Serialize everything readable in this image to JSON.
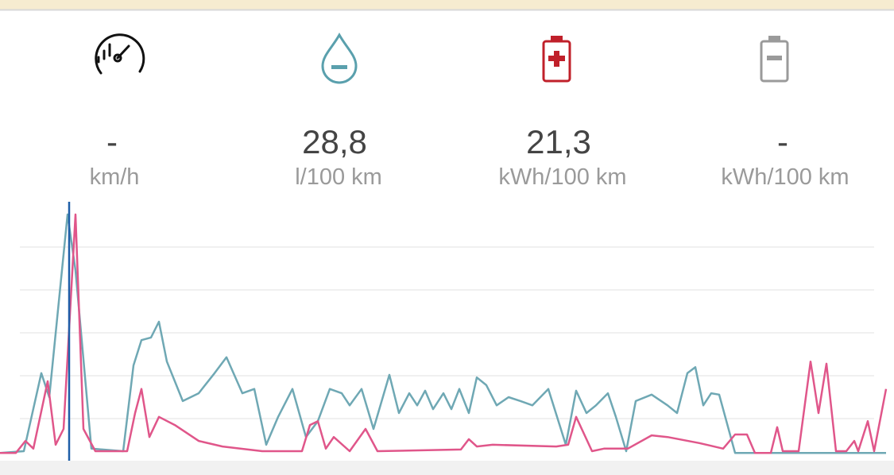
{
  "stats": [
    {
      "value": "-",
      "unit": "km/h"
    },
    {
      "value": "28,8",
      "unit": "l/100 km"
    },
    {
      "value": "21,3",
      "unit": "kWh/100 km"
    },
    {
      "value": "-",
      "unit": "kWh/100 km"
    }
  ],
  "chart_data": {
    "type": "line",
    "xlim": [
      0,
      1115
    ],
    "ylim": [
      0,
      6
    ],
    "gridlines": [
      1,
      2,
      3,
      4,
      5
    ],
    "series": [
      {
        "color": "#6fa8b4",
        "x": [
          0,
          30,
          52,
          62,
          85,
          95,
          115,
          155,
          168,
          178,
          190,
          200,
          210,
          230,
          250,
          270,
          285,
          305,
          320,
          335,
          350,
          368,
          385,
          400,
          415,
          430,
          440,
          455,
          470,
          490,
          502,
          515,
          525,
          535,
          545,
          558,
          568,
          578,
          590,
          600,
          612,
          625,
          640,
          655,
          670,
          690,
          712,
          725,
          738,
          750,
          765,
          775,
          788,
          800,
          820,
          840,
          852,
          865,
          875,
          885,
          895,
          905,
          925,
          1115
        ],
        "values": [
          0.2,
          0.24,
          2.06,
          1.5,
          5.76,
          4.46,
          0.3,
          0.24,
          2.24,
          2.83,
          2.89,
          3.26,
          2.33,
          1.41,
          1.59,
          2.06,
          2.43,
          1.59,
          1.69,
          0.39,
          1.04,
          1.69,
          0.57,
          0.94,
          1.69,
          1.59,
          1.31,
          1.69,
          0.76,
          2.02,
          1.13,
          1.59,
          1.31,
          1.65,
          1.22,
          1.59,
          1.22,
          1.69,
          1.13,
          1.96,
          1.78,
          1.31,
          1.5,
          1.41,
          1.31,
          1.69,
          0.39,
          1.65,
          1.13,
          1.31,
          1.59,
          1.04,
          0.24,
          1.41,
          1.56,
          1.31,
          1.13,
          2.06,
          2.2,
          1.31,
          1.59,
          1.56,
          0.2,
          0.2
        ]
      },
      {
        "color": "#e0568a",
        "x": [
          0,
          20,
          32,
          42,
          60,
          70,
          80,
          95,
          105,
          120,
          160,
          170,
          178,
          188,
          200,
          220,
          250,
          280,
          330,
          380,
          390,
          400,
          410,
          420,
          440,
          460,
          475,
          580,
          590,
          600,
          620,
          700,
          715,
          725,
          745,
          760,
          790,
          820,
          840,
          880,
          910,
          925,
          940,
          950,
          970,
          978,
          985,
          1005,
          1020,
          1030,
          1040,
          1052,
          1065,
          1075,
          1080,
          1092,
          1100,
          1115
        ],
        "values": [
          0.2,
          0.2,
          0.48,
          0.3,
          1.87,
          0.39,
          0.76,
          5.76,
          0.76,
          0.24,
          0.24,
          1.13,
          1.69,
          0.57,
          1.04,
          0.85,
          0.48,
          0.35,
          0.24,
          0.24,
          0.85,
          0.94,
          0.3,
          0.57,
          0.24,
          0.76,
          0.24,
          0.28,
          0.52,
          0.35,
          0.39,
          0.35,
          0.39,
          1.04,
          0.24,
          0.3,
          0.3,
          0.61,
          0.57,
          0.43,
          0.3,
          0.63,
          0.63,
          0.2,
          0.2,
          0.8,
          0.24,
          0.24,
          2.33,
          1.13,
          2.28,
          0.24,
          0.24,
          0.48,
          0.24,
          0.94,
          0.24,
          1.69
        ]
      }
    ]
  }
}
